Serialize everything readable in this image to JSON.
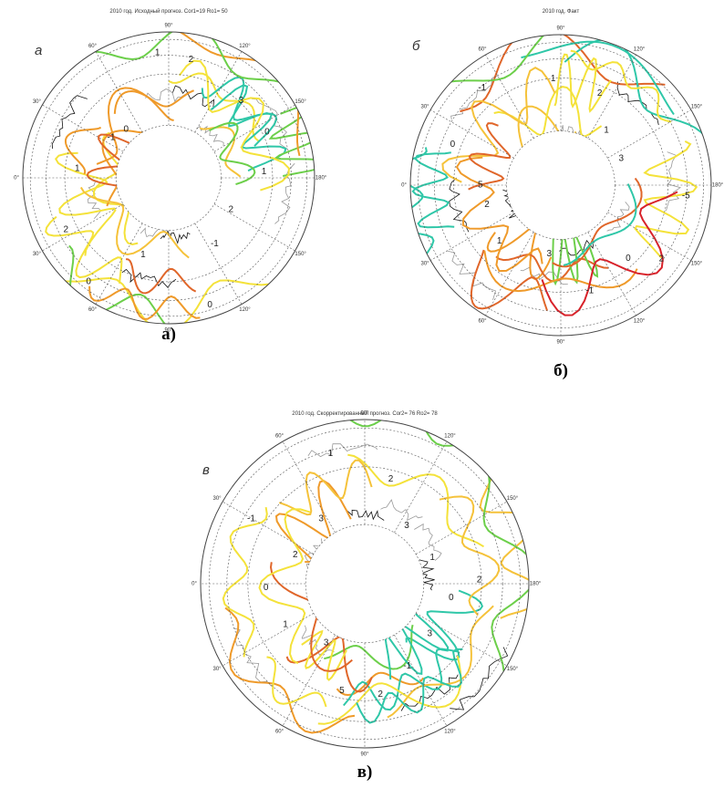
{
  "panels": [
    {
      "title": "2010 год.  Исходный прогноз.  Cor1=19  Ro1= 50",
      "letter": "а",
      "caption": "а)",
      "meridian_labels": [
        "90°",
        "120°",
        "150°",
        "180°",
        "150°",
        "120°",
        "90°",
        "60°",
        "30°",
        "0°",
        "30°",
        "60°"
      ],
      "contour_labels": [
        "2",
        "3",
        "0",
        "1",
        "2",
        "-1",
        "0",
        "1",
        "0",
        "2",
        "1",
        "-1",
        "0",
        "1"
      ]
    },
    {
      "title": "2010 год.  Факт",
      "letter": "б",
      "caption": "б)",
      "meridian_labels": [
        "90°",
        "120°",
        "150°",
        "180°",
        "150°",
        "120°",
        "90°",
        "60°",
        "30°",
        "0°",
        "30°",
        "60°"
      ],
      "contour_labels": [
        "2",
        "1",
        "3",
        "-5",
        "2",
        "0",
        "-1",
        "3",
        "1",
        "2",
        "5",
        "0",
        "-1",
        "1"
      ]
    },
    {
      "title": "2010 год.  Скорректированный прогноз.  Cor2= 76  Ro2= 78",
      "letter": "в",
      "caption": "в)",
      "meridian_labels": [
        "90°",
        "120°",
        "150°",
        "180°",
        "150°",
        "120°",
        "90°",
        "60°",
        "30°",
        "0°",
        "30°",
        "60°"
      ],
      "contour_labels": [
        "2",
        "3",
        "1",
        "2",
        "0",
        "3",
        "-1",
        "2",
        "5",
        "3",
        "1",
        "0",
        "2",
        "-1",
        "3",
        "1"
      ]
    }
  ]
}
